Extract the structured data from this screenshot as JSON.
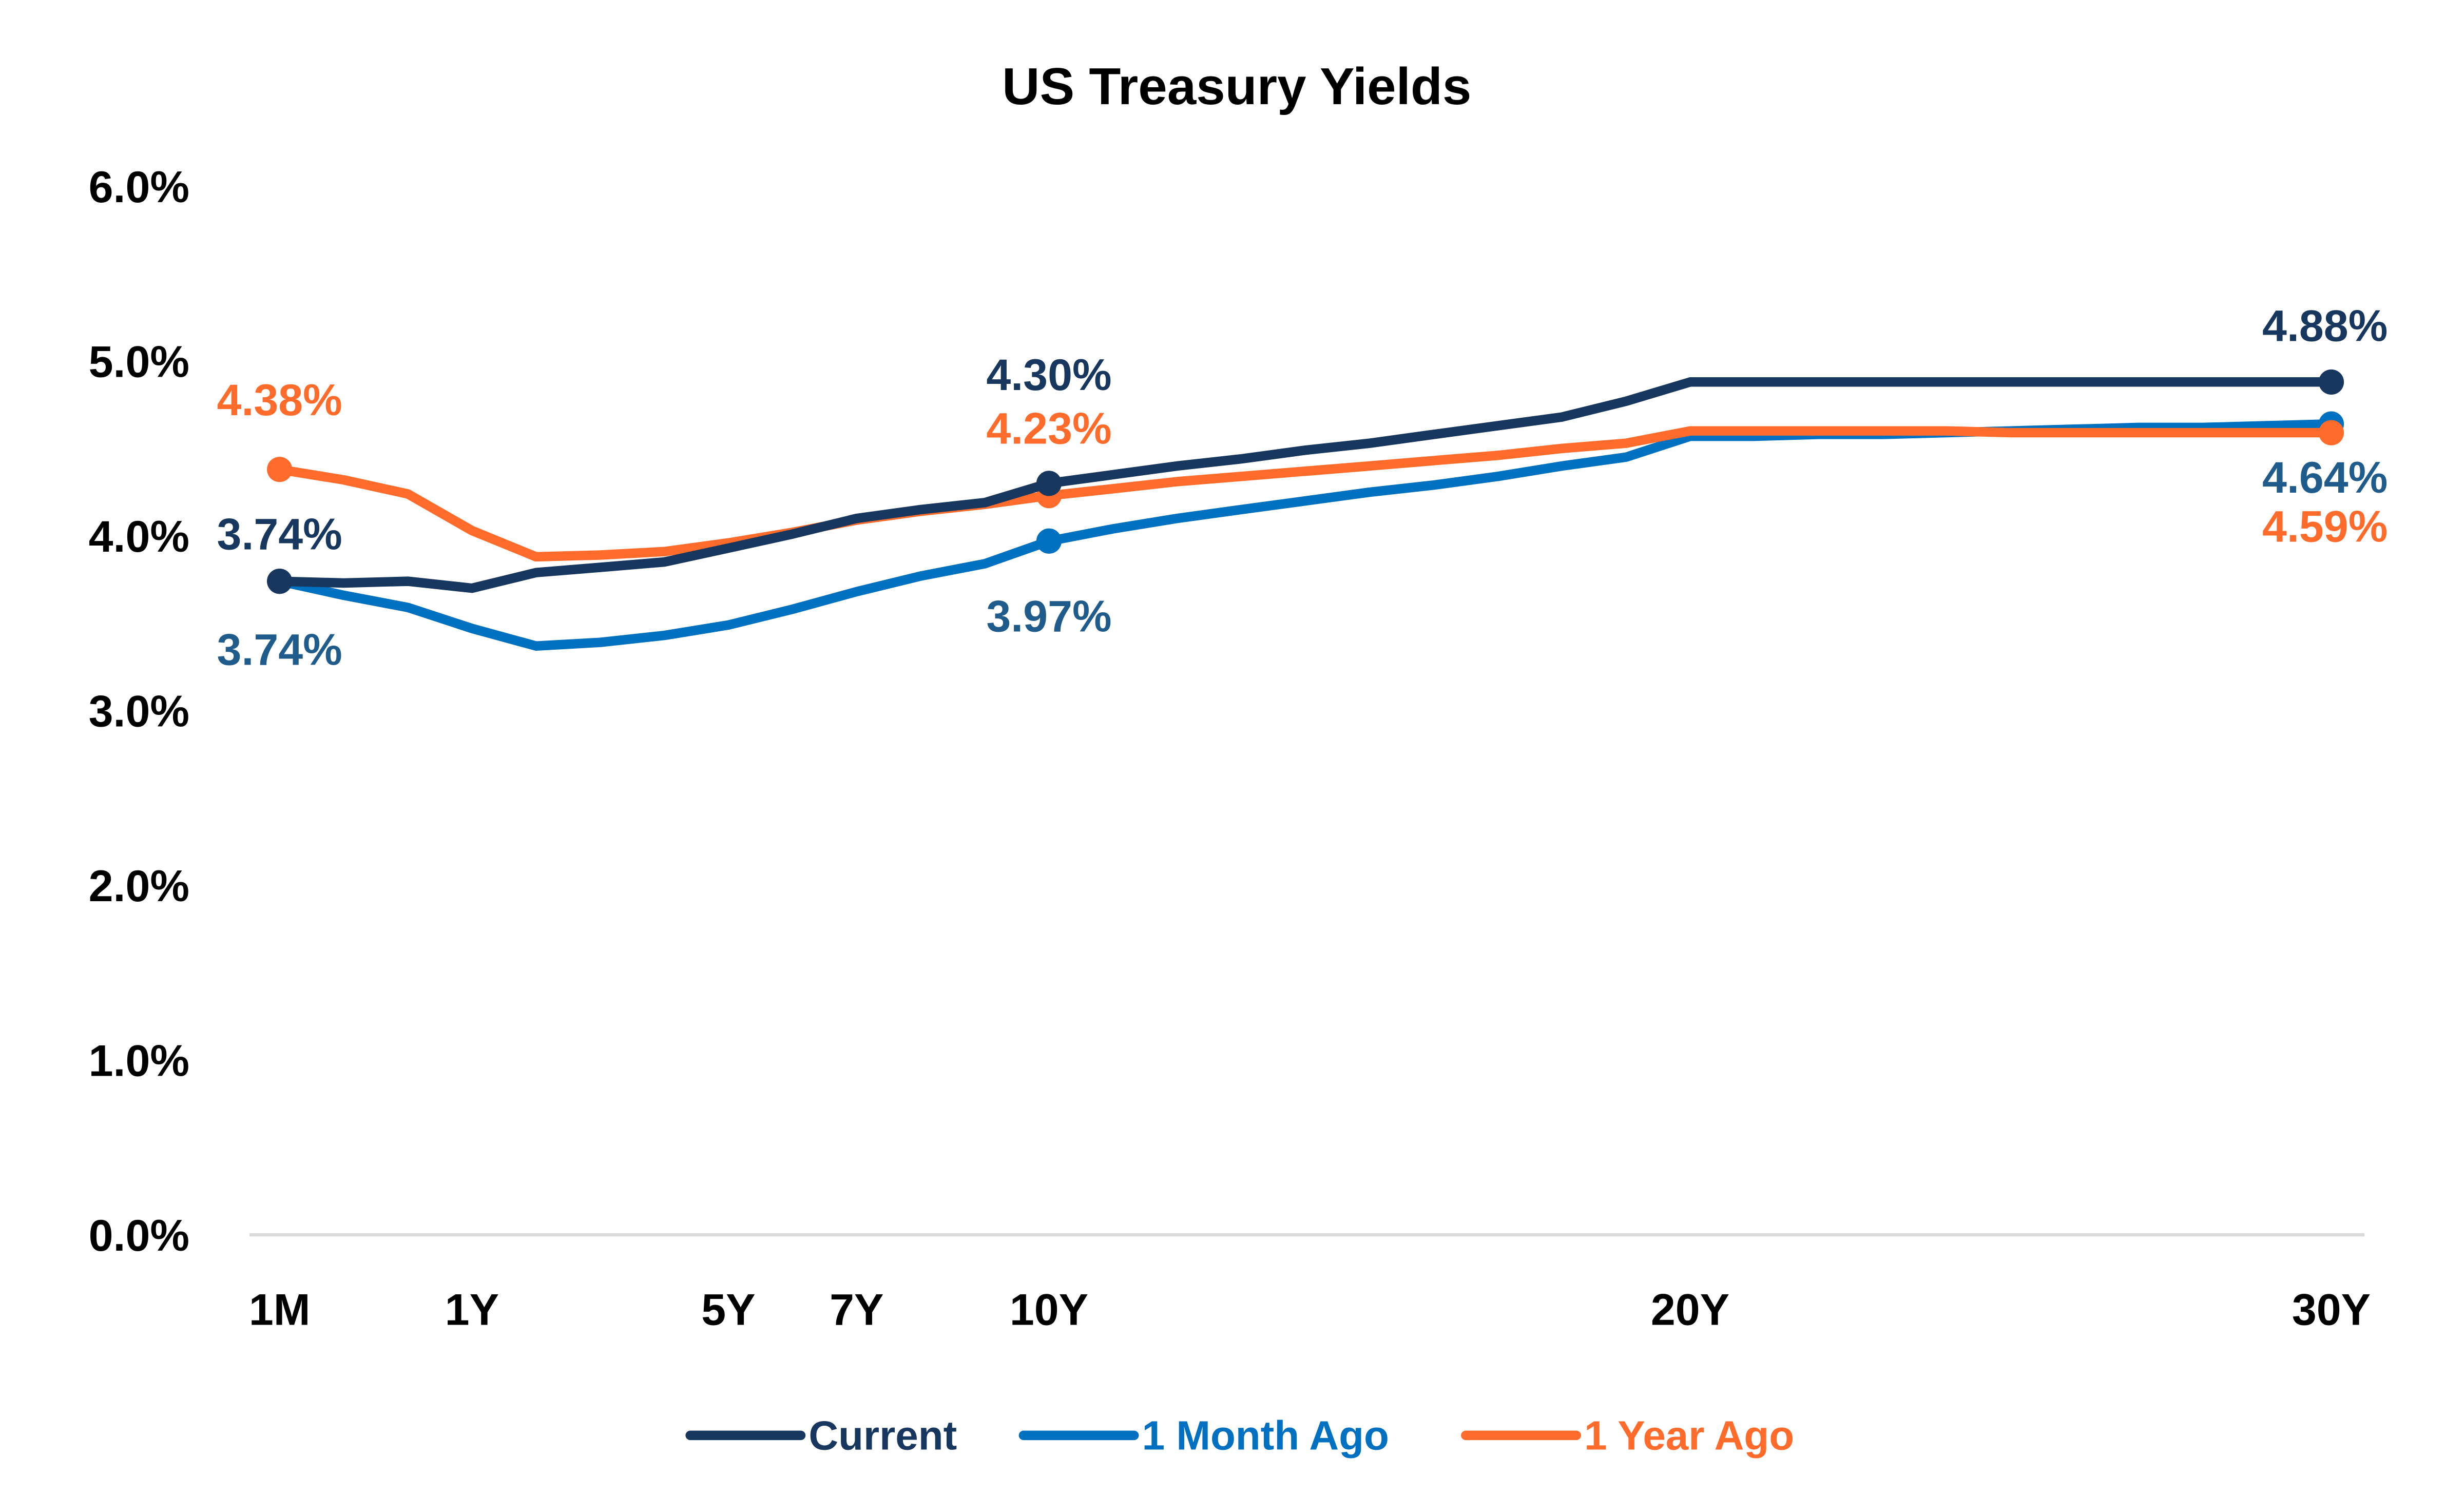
{
  "chart_data": {
    "type": "line",
    "title": "US Treasury Yields",
    "xlabel": "",
    "ylabel": "",
    "ylim": [
      0,
      6
    ],
    "y_ticks": [
      "0.0%",
      "1.0%",
      "2.0%",
      "3.0%",
      "4.0%",
      "5.0%",
      "6.0%"
    ],
    "grid": false,
    "legend_position": "bottom",
    "categories": [
      "1M",
      "3M",
      "6M",
      "1Y",
      "2Y",
      "3Y",
      "4Y",
      "5Y",
      "6Y",
      "7Y",
      "8Y",
      "9Y",
      "10Y",
      "11Y",
      "12Y",
      "13Y",
      "14Y",
      "15Y",
      "16Y",
      "17Y",
      "18Y",
      "19Y",
      "20Y",
      "21Y",
      "22Y",
      "23Y",
      "24Y",
      "25Y",
      "26Y",
      "27Y",
      "28Y",
      "29Y",
      "30Y"
    ],
    "x_tick_labels": [
      "1M",
      "1Y",
      "5Y",
      "7Y",
      "10Y",
      "20Y",
      "30Y"
    ],
    "series": [
      {
        "name": "Current",
        "color": "#17375E",
        "label_color": "#17375E",
        "values": [
          3.74,
          3.73,
          3.74,
          3.7,
          3.79,
          3.82,
          3.85,
          3.93,
          4.01,
          4.1,
          4.15,
          4.19,
          4.3,
          4.35,
          4.4,
          4.44,
          4.49,
          4.53,
          4.58,
          4.63,
          4.68,
          4.77,
          4.88,
          4.88,
          4.88,
          4.88,
          4.88,
          4.88,
          4.88,
          4.88,
          4.88,
          4.88,
          4.88
        ],
        "data_labels": [
          {
            "category": "1M",
            "text": "3.74%"
          },
          {
            "category": "10Y",
            "text": "4.30%"
          },
          {
            "category": "30Y",
            "text": "4.88%"
          }
        ]
      },
      {
        "name": "1 Month Ago",
        "color": "#0070C0",
        "label_color": "#1F5C8C",
        "values": [
          3.74,
          3.66,
          3.59,
          3.47,
          3.37,
          3.39,
          3.43,
          3.49,
          3.58,
          3.68,
          3.77,
          3.84,
          3.97,
          4.04,
          4.1,
          4.15,
          4.2,
          4.25,
          4.29,
          4.34,
          4.4,
          4.45,
          4.57,
          4.57,
          4.58,
          4.58,
          4.59,
          4.6,
          4.61,
          4.62,
          4.62,
          4.63,
          4.64
        ],
        "data_labels": [
          {
            "category": "1M",
            "text": "3.74%"
          },
          {
            "category": "10Y",
            "text": "3.97%"
          },
          {
            "category": "30Y",
            "text": "4.64%"
          }
        ]
      },
      {
        "name": "1 Year Ago",
        "color": "#FF6B2B",
        "label_color": "#FF6B2B",
        "values": [
          4.38,
          4.32,
          4.24,
          4.03,
          3.88,
          3.89,
          3.91,
          3.96,
          4.02,
          4.09,
          4.14,
          4.18,
          4.23,
          4.27,
          4.31,
          4.34,
          4.37,
          4.4,
          4.43,
          4.46,
          4.5,
          4.53,
          4.6,
          4.6,
          4.6,
          4.6,
          4.6,
          4.59,
          4.59,
          4.59,
          4.59,
          4.59,
          4.59
        ],
        "data_labels": [
          {
            "category": "1M",
            "text": "4.38%"
          },
          {
            "category": "10Y",
            "text": "4.23%"
          },
          {
            "category": "30Y",
            "text": "4.59%"
          }
        ]
      }
    ]
  }
}
